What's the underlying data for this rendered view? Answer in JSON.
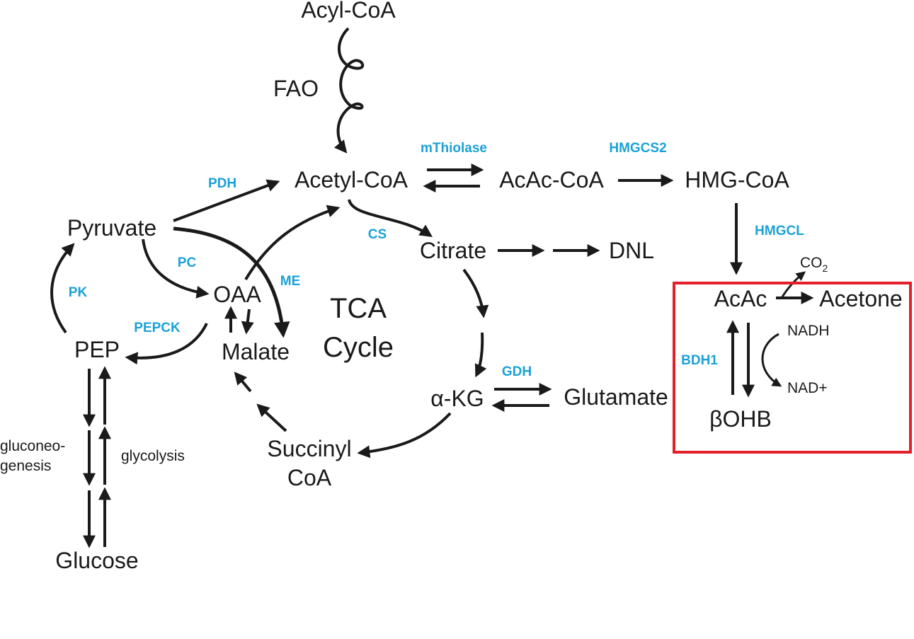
{
  "colors": {
    "enzyme": "#1ba1d8",
    "text": "#1a1a1a",
    "highlight_box": "#e3202a"
  },
  "metabolites": {
    "acyl_coa": "Acyl-CoA",
    "acetyl_coa": "Acetyl-CoA",
    "acac_coa": "AcAc-CoA",
    "hmg_coa": "HMG-CoA",
    "pyruvate": "Pyruvate",
    "oaa": "OAA",
    "malate": "Malate",
    "pep": "PEP",
    "citrate": "Citrate",
    "dnl": "DNL",
    "akg": "α-KG",
    "glutamate": "Glutamate",
    "succinyl_1": "Succinyl",
    "succinyl_2": "CoA",
    "glucose": "Glucose",
    "acac": "AcAc",
    "acetone": "Acetone",
    "bohb": "βOHB"
  },
  "labels": {
    "fao": "FAO",
    "tca_1": "TCA",
    "tca_2": "Cycle",
    "gluconeo_1": "gluconeo-",
    "gluconeo_2": "genesis",
    "glycolysis": "glycolysis"
  },
  "enzymes": {
    "mthiolase": "mThiolase",
    "hmgcs2": "HMGCS2",
    "pdh": "PDH",
    "cs": "CS",
    "hmgcl": "HMGCL",
    "pc": "PC",
    "me": "ME",
    "pk": "PK",
    "pepck": "PEPCK",
    "gdh": "GDH",
    "bdh1": "BDH1"
  },
  "cofactors": {
    "co2_main": "CO",
    "co2_sub": "2",
    "nadh": "NADH",
    "nad": "NAD+"
  }
}
